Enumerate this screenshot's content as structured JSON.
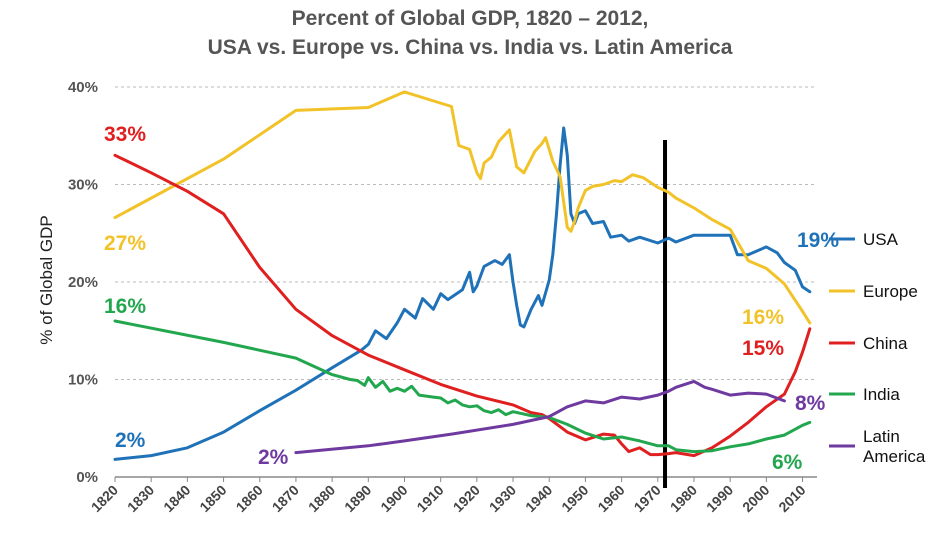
{
  "chart_data": {
    "type": "line",
    "title": "Percent of Global GDP, 1820 – 2012,",
    "subtitle": "USA vs. Europe vs. China vs. India vs. Latin America",
    "xlabel": "",
    "ylabel": "% of Global GDP",
    "xlim": [
      1820,
      2014
    ],
    "ylim": [
      0,
      40
    ],
    "x_ticks": [
      1820,
      1830,
      1840,
      1850,
      1860,
      1870,
      1880,
      1890,
      1900,
      1910,
      1920,
      1930,
      1940,
      1950,
      1960,
      1970,
      1980,
      1990,
      2000,
      2010
    ],
    "y_ticks": [
      0,
      10,
      20,
      30,
      40
    ],
    "y_tick_labels": [
      "0%",
      "10%",
      "20%",
      "30%",
      "40%"
    ],
    "grid": "horizontal dashed",
    "legend": "right",
    "marker_line_year": 1972,
    "series": [
      {
        "name": "USA",
        "legend_label": "USA",
        "color": "#1f72b8",
        "x": [
          1820,
          1830,
          1840,
          1850,
          1860,
          1870,
          1880,
          1888,
          1890,
          1892,
          1895,
          1898,
          1900,
          1903,
          1905,
          1908,
          1910,
          1912,
          1914,
          1916,
          1918,
          1919,
          1920,
          1922,
          1925,
          1927,
          1929,
          1930,
          1931,
          1932,
          1933,
          1935,
          1937,
          1938,
          1940,
          1941,
          1942,
          1943,
          1944,
          1945,
          1946,
          1947,
          1948,
          1950,
          1952,
          1955,
          1957,
          1960,
          1962,
          1965,
          1970,
          1973,
          1975,
          1980,
          1985,
          1990,
          1992,
          1995,
          2000,
          2003,
          2005,
          2008,
          2010,
          2012
        ],
        "values": [
          1.8,
          2.2,
          3.0,
          4.6,
          6.8,
          8.9,
          11.2,
          13.0,
          13.6,
          15.0,
          14.2,
          15.8,
          17.2,
          16.3,
          18.3,
          17.2,
          18.8,
          18.2,
          18.7,
          19.2,
          21.0,
          19.0,
          19.6,
          21.6,
          22.2,
          21.8,
          22.8,
          20.0,
          17.6,
          15.6,
          15.4,
          17.2,
          18.6,
          17.6,
          20.2,
          22.8,
          27.0,
          32.0,
          35.8,
          33.0,
          27.0,
          26.0,
          27.0,
          27.3,
          26.0,
          26.2,
          24.6,
          24.8,
          24.2,
          24.6,
          24.0,
          24.5,
          24.1,
          24.8,
          24.8,
          24.8,
          22.8,
          22.8,
          23.6,
          23.0,
          22.0,
          21.2,
          19.5,
          19.0
        ],
        "start_label": "2%",
        "end_label": "19%"
      },
      {
        "name": "Europe",
        "legend_label": "Europe",
        "color": "#f2c229",
        "x": [
          1820,
          1850,
          1870,
          1890,
          1900,
          1913,
          1915,
          1918,
          1920,
          1921,
          1922,
          1924,
          1926,
          1929,
          1931,
          1933,
          1936,
          1938,
          1939,
          1941,
          1943,
          1945,
          1946,
          1947,
          1948,
          1950,
          1952,
          1955,
          1958,
          1960,
          1963,
          1966,
          1970,
          1973,
          1975,
          1980,
          1985,
          1990,
          1995,
          2000,
          2005,
          2010,
          2012
        ],
        "values": [
          26.6,
          32.6,
          37.6,
          37.9,
          39.5,
          38.0,
          34.0,
          33.6,
          31.2,
          30.6,
          32.2,
          32.8,
          34.4,
          35.6,
          31.8,
          31.2,
          33.4,
          34.2,
          34.8,
          32.4,
          30.8,
          25.6,
          25.2,
          26.2,
          27.6,
          29.4,
          29.8,
          30.0,
          30.4,
          30.3,
          31.0,
          30.7,
          29.7,
          29.2,
          28.6,
          27.6,
          26.4,
          25.4,
          22.2,
          21.4,
          19.8,
          17.0,
          15.8
        ],
        "start_label": "27%",
        "end_label": "16%"
      },
      {
        "name": "China",
        "legend_label": "China",
        "color": "#e02020",
        "x": [
          1820,
          1830,
          1840,
          1850,
          1860,
          1870,
          1880,
          1890,
          1900,
          1910,
          1920,
          1930,
          1935,
          1938,
          1940,
          1945,
          1950,
          1955,
          1958,
          1960,
          1962,
          1965,
          1968,
          1970,
          1973,
          1975,
          1980,
          1985,
          1990,
          1995,
          2000,
          2005,
          2008,
          2010,
          2012
        ],
        "values": [
          33.0,
          31.2,
          29.3,
          27.0,
          21.5,
          17.2,
          14.5,
          12.5,
          11.0,
          9.5,
          8.3,
          7.4,
          6.6,
          6.4,
          6.0,
          4.6,
          3.8,
          4.4,
          4.3,
          3.4,
          2.6,
          3.0,
          2.3,
          2.3,
          2.4,
          2.5,
          2.2,
          3.0,
          4.2,
          5.6,
          7.2,
          8.5,
          10.8,
          12.8,
          15.2
        ],
        "start_label": "33%",
        "end_label": "15%"
      },
      {
        "name": "India",
        "legend_label": "India",
        "color": "#23a74e",
        "x": [
          1820,
          1850,
          1870,
          1880,
          1885,
          1887,
          1889,
          1890,
          1892,
          1894,
          1896,
          1898,
          1900,
          1902,
          1904,
          1906,
          1908,
          1910,
          1912,
          1914,
          1916,
          1918,
          1920,
          1922,
          1924,
          1926,
          1928,
          1930,
          1935,
          1940,
          1945,
          1950,
          1955,
          1960,
          1965,
          1970,
          1973,
          1975,
          1980,
          1985,
          1990,
          1995,
          2000,
          2005,
          2010,
          2012
        ],
        "values": [
          16.0,
          13.8,
          12.2,
          10.5,
          10.0,
          9.9,
          9.4,
          10.2,
          9.2,
          9.8,
          8.8,
          9.1,
          8.8,
          9.3,
          8.4,
          8.3,
          8.2,
          8.1,
          7.6,
          7.9,
          7.4,
          7.2,
          7.3,
          6.8,
          6.6,
          6.9,
          6.4,
          6.7,
          6.3,
          6.1,
          5.4,
          4.5,
          3.9,
          4.1,
          3.7,
          3.2,
          3.2,
          2.8,
          2.6,
          2.7,
          3.1,
          3.4,
          3.9,
          4.3,
          5.3,
          5.6
        ],
        "start_label": "16%",
        "end_label": "6%"
      },
      {
        "name": "Latin America",
        "legend_label": "Latin\nAmerica",
        "color": "#6f3aa0",
        "x": [
          1870,
          1890,
          1900,
          1913,
          1930,
          1940,
          1945,
          1950,
          1955,
          1960,
          1965,
          1970,
          1973,
          1975,
          1980,
          1983,
          1985,
          1990,
          1995,
          2000,
          2005
        ],
        "values": [
          2.5,
          3.2,
          3.7,
          4.4,
          5.4,
          6.2,
          7.2,
          7.8,
          7.6,
          8.2,
          8.0,
          8.4,
          8.8,
          9.2,
          9.8,
          9.2,
          9.0,
          8.4,
          8.6,
          8.5,
          7.8
        ],
        "start_label": "2%",
        "end_label": "8%"
      }
    ]
  }
}
